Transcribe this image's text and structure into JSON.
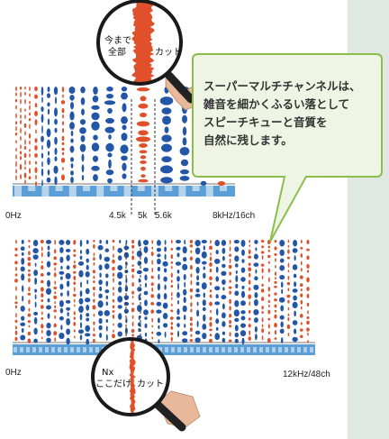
{
  "callout": {
    "lines": [
      "スーパーマルチチャンネルは、",
      "雑音を細かくふるい落として",
      "スピーチキューと音質を",
      "自然に残します。"
    ]
  },
  "top_panel": {
    "left_label": "0Hz",
    "cut_low_label": "4.5k",
    "cut_mid_label": "5k",
    "cut_high_label": "5.6k",
    "right_label": "8kHz/16ch",
    "channel_count": 16,
    "magnifier_label_left": [
      "今まで",
      "全部"
    ],
    "magnifier_label_right": "カット"
  },
  "bottom_panel": {
    "left_label": "0Hz",
    "right_label": "12kHz/48ch",
    "channel_count": 48,
    "magnifier_label_left": [
      "Nx",
      "ここだけ"
    ],
    "magnifier_label_right": "カット"
  },
  "colors": {
    "speech": "#2456a8",
    "noise": "#e0502a",
    "axis_bar": "#5b9fd6",
    "callout_fill": "#eef5e4",
    "callout_border": "#8cbf4a",
    "side_strip": "#dfe8e2"
  }
}
